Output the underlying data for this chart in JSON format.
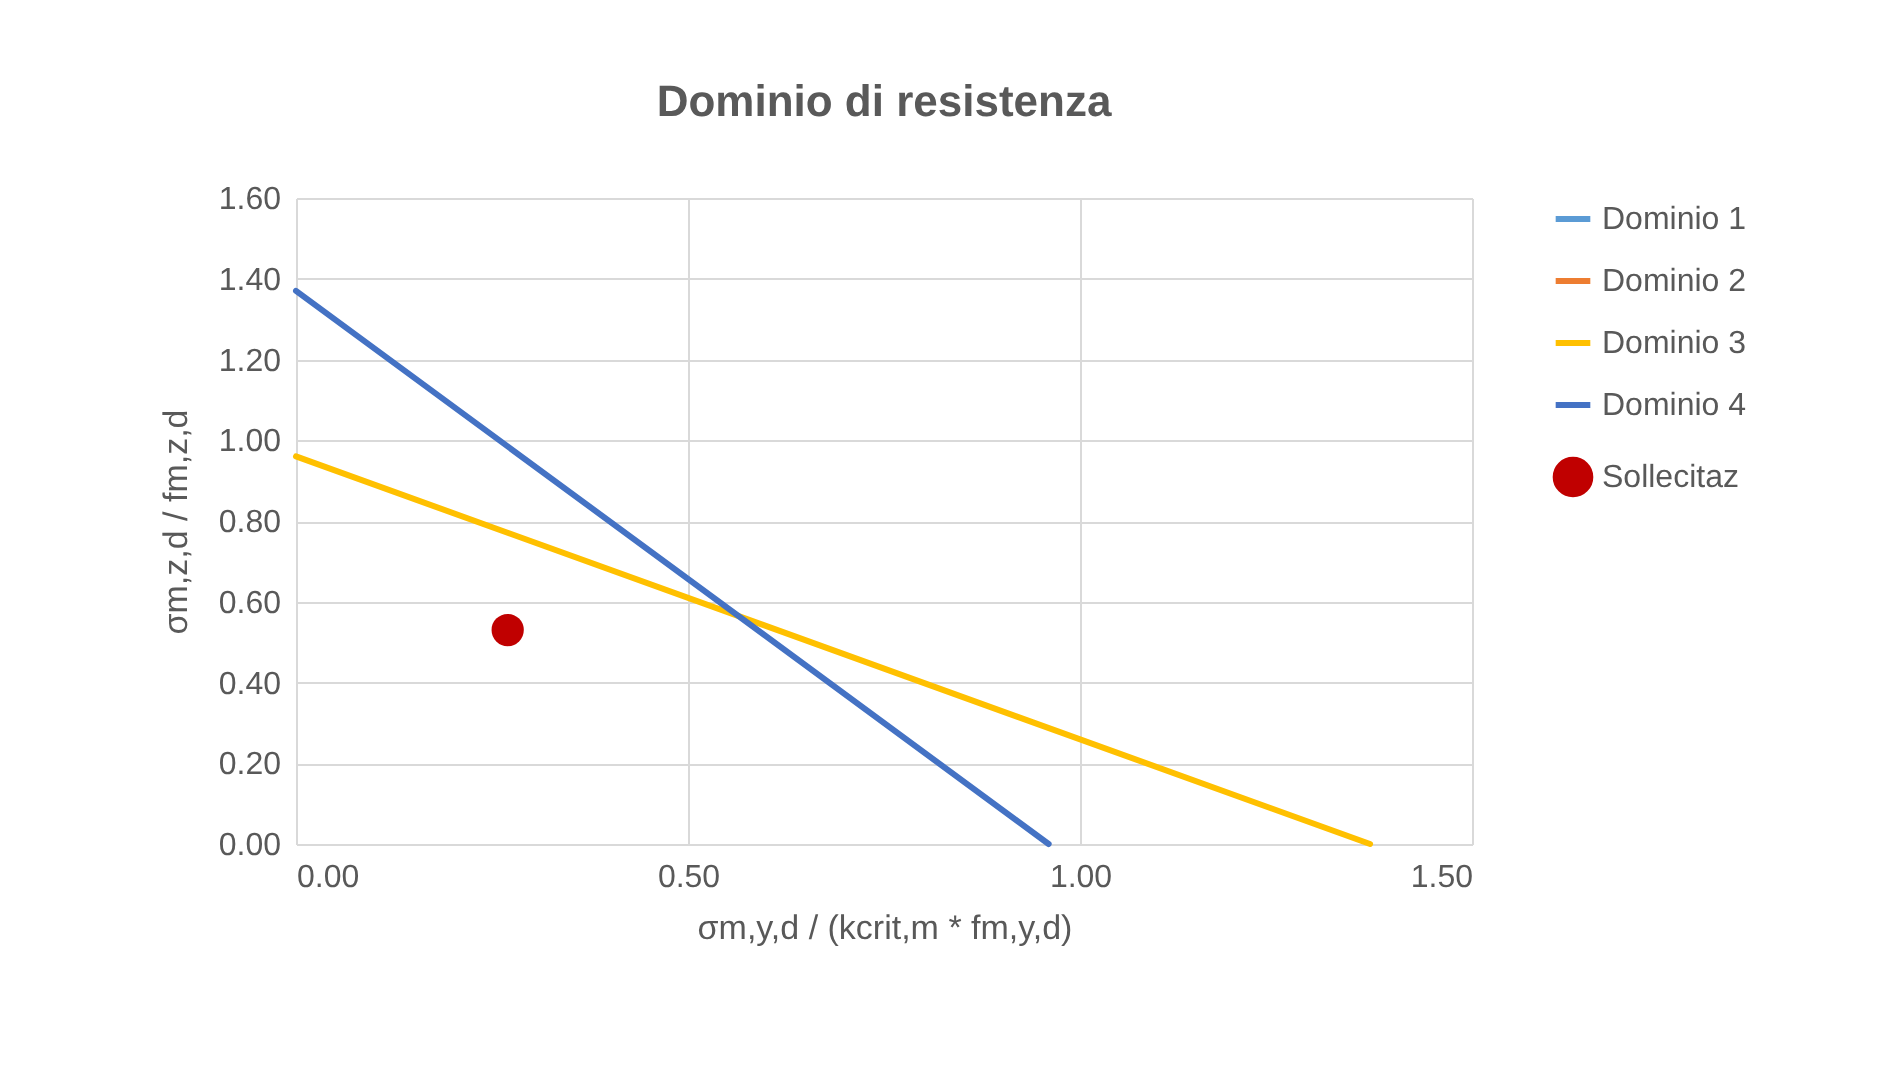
{
  "chart_data": {
    "type": "line",
    "title": "Dominio di resistenza",
    "xlabel": "σm,y,d / (kcrit,m * fm,y,d)",
    "ylabel": "σm,z,d / fm,z,d",
    "xlim": [
      0,
      1.5
    ],
    "ylim": [
      0,
      1.6
    ],
    "xticks": [
      {
        "value": 0,
        "label": "0.00"
      },
      {
        "value": 0.5,
        "label": "0.50"
      },
      {
        "value": 1,
        "label": "1.00"
      },
      {
        "value": 1.5,
        "label": "1.50"
      }
    ],
    "yticks": [
      {
        "value": 0,
        "label": "0.00"
      },
      {
        "value": 0.2,
        "label": "0.20"
      },
      {
        "value": 0.4,
        "label": "0.40"
      },
      {
        "value": 0.6,
        "label": "0.60"
      },
      {
        "value": 0.8,
        "label": "0.80"
      },
      {
        "value": 1,
        "label": "1.00"
      },
      {
        "value": 1.2,
        "label": "1.20"
      },
      {
        "value": 1.4,
        "label": "1.40"
      },
      {
        "value": 1.6,
        "label": "1.60"
      }
    ],
    "grid": true,
    "legend": "right",
    "series": [
      {
        "name": "Dominio 1",
        "color": "#5b9bd5",
        "values": [
          null,
          null
        ]
      },
      {
        "name": "Dominio 2",
        "color": "#ed7d31",
        "values": [
          null,
          null
        ]
      },
      {
        "name": "Dominio 3",
        "color": "#ffc000",
        "x": [
          0,
          1.37
        ],
        "values": [
          0.96,
          0
        ]
      },
      {
        "name": "Dominio 4",
        "color": "#4472c4",
        "x": [
          0,
          0.96
        ],
        "values": [
          1.37,
          0
        ]
      },
      {
        "name": "Sollecitaz",
        "type": "scatter",
        "color": "#c00000",
        "x": [
          0.27
        ],
        "values": [
          0.53
        ]
      }
    ]
  }
}
